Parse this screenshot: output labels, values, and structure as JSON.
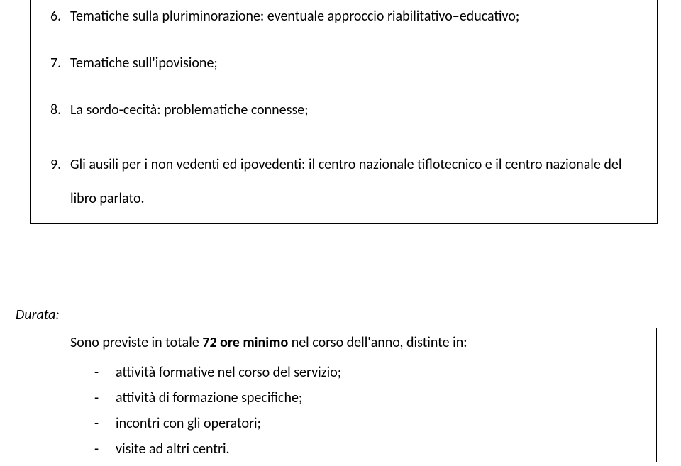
{
  "box1": {
    "items": [
      {
        "num": "6.",
        "text": "Tematiche sulla pluriminorazione: eventuale approccio riabilitativo–educativo;"
      },
      {
        "num": "7.",
        "text": "Tematiche sull'ipovisione;"
      },
      {
        "num": "8.",
        "text": "La sordo-cecità: problematiche connesse;"
      },
      {
        "num": "9.",
        "text": "Gli ausili per i non vedenti ed ipovedenti: il centro nazionale tiflotecnico e il centro nazionale del libro parlato."
      }
    ]
  },
  "durata_label": "Durata:",
  "box2": {
    "intro_prefix": "Sono previste in totale ",
    "intro_bold": "72 ore minimo",
    "intro_suffix": " nel corso dell'anno, distinte in:",
    "items": [
      "attività formative nel corso del servizio;",
      "attività di formazione specifiche;",
      "incontri con gli operatori;",
      "visite ad altri centri."
    ]
  },
  "dash": "-"
}
